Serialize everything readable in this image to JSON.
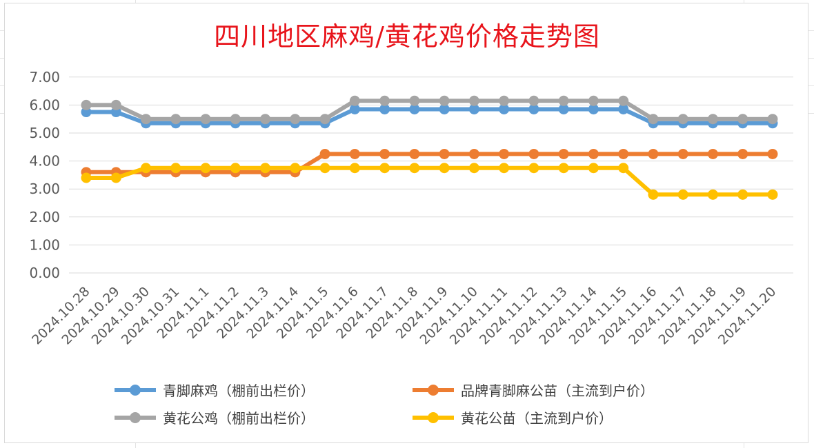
{
  "chart_data": {
    "type": "line",
    "title": "四川地区麻鸡/黄花鸡价格走势图",
    "xlabel": "",
    "ylabel": "",
    "ylim": [
      0,
      7
    ],
    "y_ticks": [
      "0.00",
      "1.00",
      "2.00",
      "3.00",
      "4.00",
      "5.00",
      "6.00",
      "7.00"
    ],
    "grid": true,
    "legend_position": "bottom",
    "categories": [
      "2024.10.28",
      "2024.10.29",
      "2024.10.30",
      "2024.10.31",
      "2024.11.1",
      "2024.11.2",
      "2024.11.3",
      "2024.11.4",
      "2024.11.5",
      "2024.11.6",
      "2024.11.7",
      "2024.11.8",
      "2024.11.9",
      "2024.11.10",
      "2024.11.11",
      "2024.11.12",
      "2024.11.13",
      "2024.11.14",
      "2024.11.15",
      "2024.11.16",
      "2024.11.17",
      "2024.11.18",
      "2024.11.19",
      "2024.11.20"
    ],
    "series": [
      {
        "name": "青脚麻鸡（棚前出栏价）",
        "color": "#5b9bd5",
        "values": [
          5.75,
          5.75,
          5.35,
          5.35,
          5.35,
          5.35,
          5.35,
          5.35,
          5.35,
          5.85,
          5.85,
          5.85,
          5.85,
          5.85,
          5.85,
          5.85,
          5.85,
          5.85,
          5.85,
          5.35,
          5.35,
          5.35,
          5.35,
          5.35
        ]
      },
      {
        "name": "品牌青脚麻公苗（主流到户价）",
        "color": "#ed7d31",
        "values": [
          3.6,
          3.6,
          3.6,
          3.6,
          3.6,
          3.6,
          3.6,
          3.6,
          4.25,
          4.25,
          4.25,
          4.25,
          4.25,
          4.25,
          4.25,
          4.25,
          4.25,
          4.25,
          4.25,
          4.25,
          4.25,
          4.25,
          4.25,
          4.25
        ]
      },
      {
        "name": "黄花公鸡（棚前出栏价）",
        "color": "#a5a5a5",
        "values": [
          6.0,
          6.0,
          5.5,
          5.5,
          5.5,
          5.5,
          5.5,
          5.5,
          5.5,
          6.15,
          6.15,
          6.15,
          6.15,
          6.15,
          6.15,
          6.15,
          6.15,
          6.15,
          6.15,
          5.5,
          5.5,
          5.5,
          5.5,
          5.5
        ]
      },
      {
        "name": "黄花公苗（主流到户价）",
        "color": "#ffc000",
        "values": [
          3.4,
          3.4,
          3.75,
          3.75,
          3.75,
          3.75,
          3.75,
          3.75,
          3.75,
          3.75,
          3.75,
          3.75,
          3.75,
          3.75,
          3.75,
          3.75,
          3.75,
          3.75,
          3.75,
          2.8,
          2.8,
          2.8,
          2.8,
          2.8
        ]
      }
    ]
  }
}
